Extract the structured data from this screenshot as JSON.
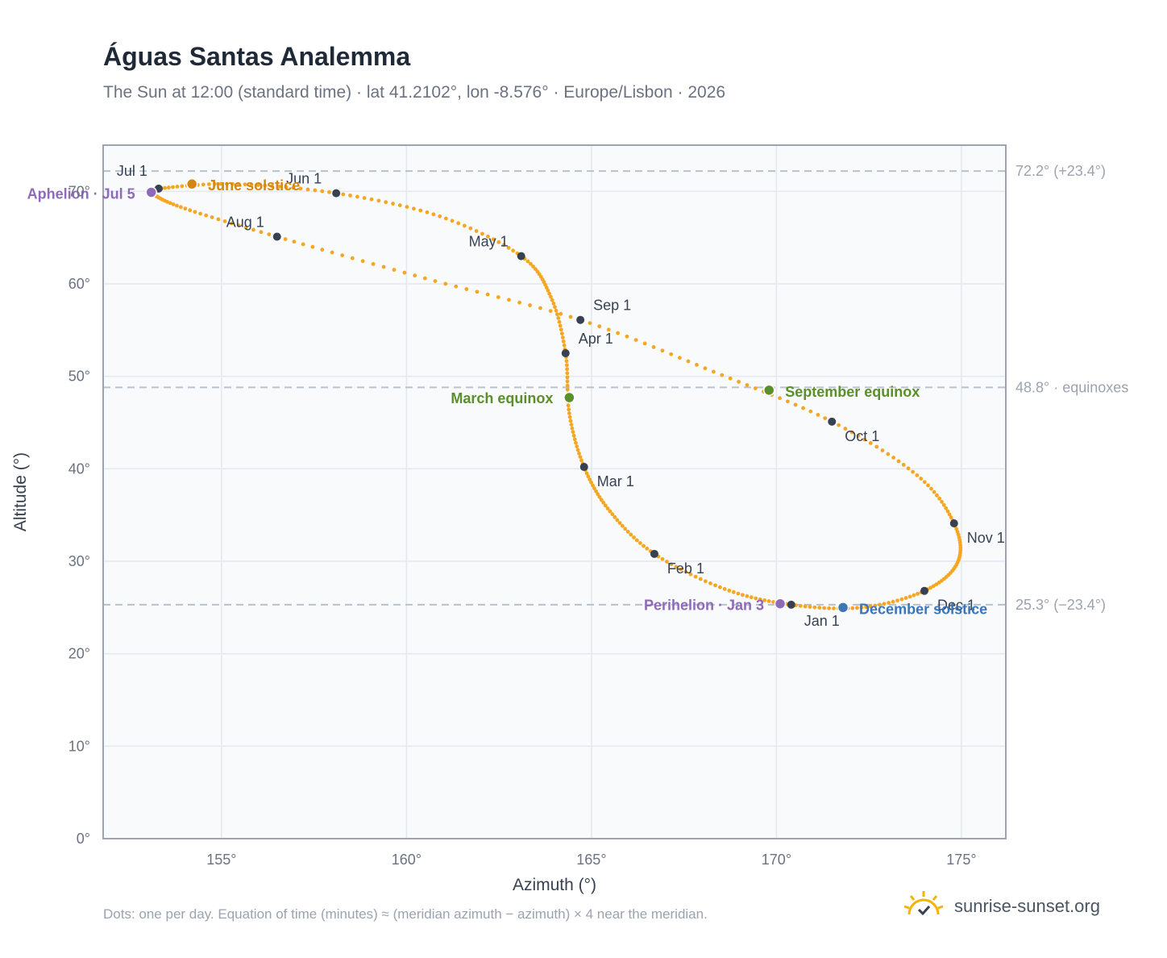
{
  "header": {
    "title": "Águas Santas Analemma",
    "subtitle": "The Sun at 12:00 (standard time) · lat 41.2102°, lon -8.576° · Europe/Lisbon · 2026"
  },
  "footer": {
    "note": "Dots: one per day. Equation of time (minutes) ≈ (meridian azimuth − azimuth) × 4 near the meridian.",
    "brand": "sunrise-sunset.org"
  },
  "colors": {
    "curve": "#f5a623",
    "month_dot": "#374151",
    "june_solstice": "#d4870f",
    "equinox": "#5a8f29",
    "december_solstice": "#3a76b8",
    "apsis": "#8e6ab8",
    "grid": "#e3e8ee",
    "plot_bg": "#f8fafc",
    "frame": "#9aa5b1",
    "ref_line": "#b8c2cc"
  },
  "chart_data": {
    "type": "scatter",
    "xlabel": "Azimuth (°)",
    "ylabel": "Altitude (°)",
    "xlim": [
      151.8,
      176.2
    ],
    "ylim": [
      0,
      75
    ],
    "xticks": [
      155,
      160,
      165,
      170,
      175
    ],
    "xtick_labels": [
      "155°",
      "160°",
      "165°",
      "170°",
      "175°"
    ],
    "yticks": [
      0,
      10,
      20,
      30,
      40,
      50,
      60,
      70
    ],
    "ytick_labels": [
      "0°",
      "10°",
      "20°",
      "30°",
      "40°",
      "50°",
      "60°",
      "70°"
    ],
    "grid": true,
    "reference_lines": [
      {
        "y": 72.2,
        "label": "72.2° (+23.4°)"
      },
      {
        "y": 48.8,
        "label": "48.8° · equinoxes"
      },
      {
        "y": 25.3,
        "label": "25.3° (−23.4°)"
      }
    ],
    "month_markers": [
      {
        "label": "Jan 1",
        "x": 170.4,
        "y": 25.3
      },
      {
        "label": "Feb 1",
        "x": 166.7,
        "y": 30.8
      },
      {
        "label": "Mar 1",
        "x": 164.8,
        "y": 40.2
      },
      {
        "label": "Apr 1",
        "x": 164.3,
        "y": 52.5
      },
      {
        "label": "May 1",
        "x": 163.1,
        "y": 63.0
      },
      {
        "label": "Jun 1",
        "x": 158.1,
        "y": 69.8
      },
      {
        "label": "Jul 1",
        "x": 153.3,
        "y": 70.3
      },
      {
        "label": "Aug 1",
        "x": 156.5,
        "y": 65.1
      },
      {
        "label": "Sep 1",
        "x": 164.7,
        "y": 56.1
      },
      {
        "label": "Oct 1",
        "x": 171.5,
        "y": 45.1
      },
      {
        "label": "Nov 1",
        "x": 174.8,
        "y": 34.1
      },
      {
        "label": "Dec 1",
        "x": 174.0,
        "y": 26.8
      }
    ],
    "events": [
      {
        "label": "June solstice",
        "x": 154.2,
        "y": 70.8,
        "color": "#d4870f"
      },
      {
        "label": "March equinox",
        "x": 164.4,
        "y": 47.7,
        "color": "#5a8f29"
      },
      {
        "label": "September equinox",
        "x": 169.8,
        "y": 48.5,
        "color": "#5a8f29"
      },
      {
        "label": "December solstice",
        "x": 171.8,
        "y": 25.0,
        "color": "#3a76b8"
      },
      {
        "label": "Aphelion · Jul 5",
        "x": 153.1,
        "y": 69.9,
        "color": "#8e6ab8"
      },
      {
        "label": "Perihelion · Jan 3",
        "x": 170.1,
        "y": 25.4,
        "color": "#8e6ab8"
      }
    ],
    "curve_points": [
      {
        "x": 170.4,
        "y": 25.3
      },
      {
        "x": 168.6,
        "y": 27.0
      },
      {
        "x": 166.7,
        "y": 30.8
      },
      {
        "x": 165.5,
        "y": 35.4
      },
      {
        "x": 164.8,
        "y": 40.2
      },
      {
        "x": 164.4,
        "y": 46.0
      },
      {
        "x": 164.3,
        "y": 52.5
      },
      {
        "x": 163.9,
        "y": 58.6
      },
      {
        "x": 163.1,
        "y": 63.0
      },
      {
        "x": 160.9,
        "y": 67.3
      },
      {
        "x": 158.1,
        "y": 69.8
      },
      {
        "x": 155.3,
        "y": 70.8
      },
      {
        "x": 153.3,
        "y": 70.3
      },
      {
        "x": 153.1,
        "y": 69.9
      },
      {
        "x": 153.9,
        "y": 68.3
      },
      {
        "x": 156.5,
        "y": 65.1
      },
      {
        "x": 160.5,
        "y": 60.6
      },
      {
        "x": 164.7,
        "y": 56.1
      },
      {
        "x": 168.3,
        "y": 50.5
      },
      {
        "x": 171.5,
        "y": 45.1
      },
      {
        "x": 173.8,
        "y": 39.3
      },
      {
        "x": 174.8,
        "y": 34.1
      },
      {
        "x": 174.9,
        "y": 29.9
      },
      {
        "x": 174.0,
        "y": 26.8
      },
      {
        "x": 172.3,
        "y": 25.0
      },
      {
        "x": 170.4,
        "y": 25.3
      }
    ]
  }
}
